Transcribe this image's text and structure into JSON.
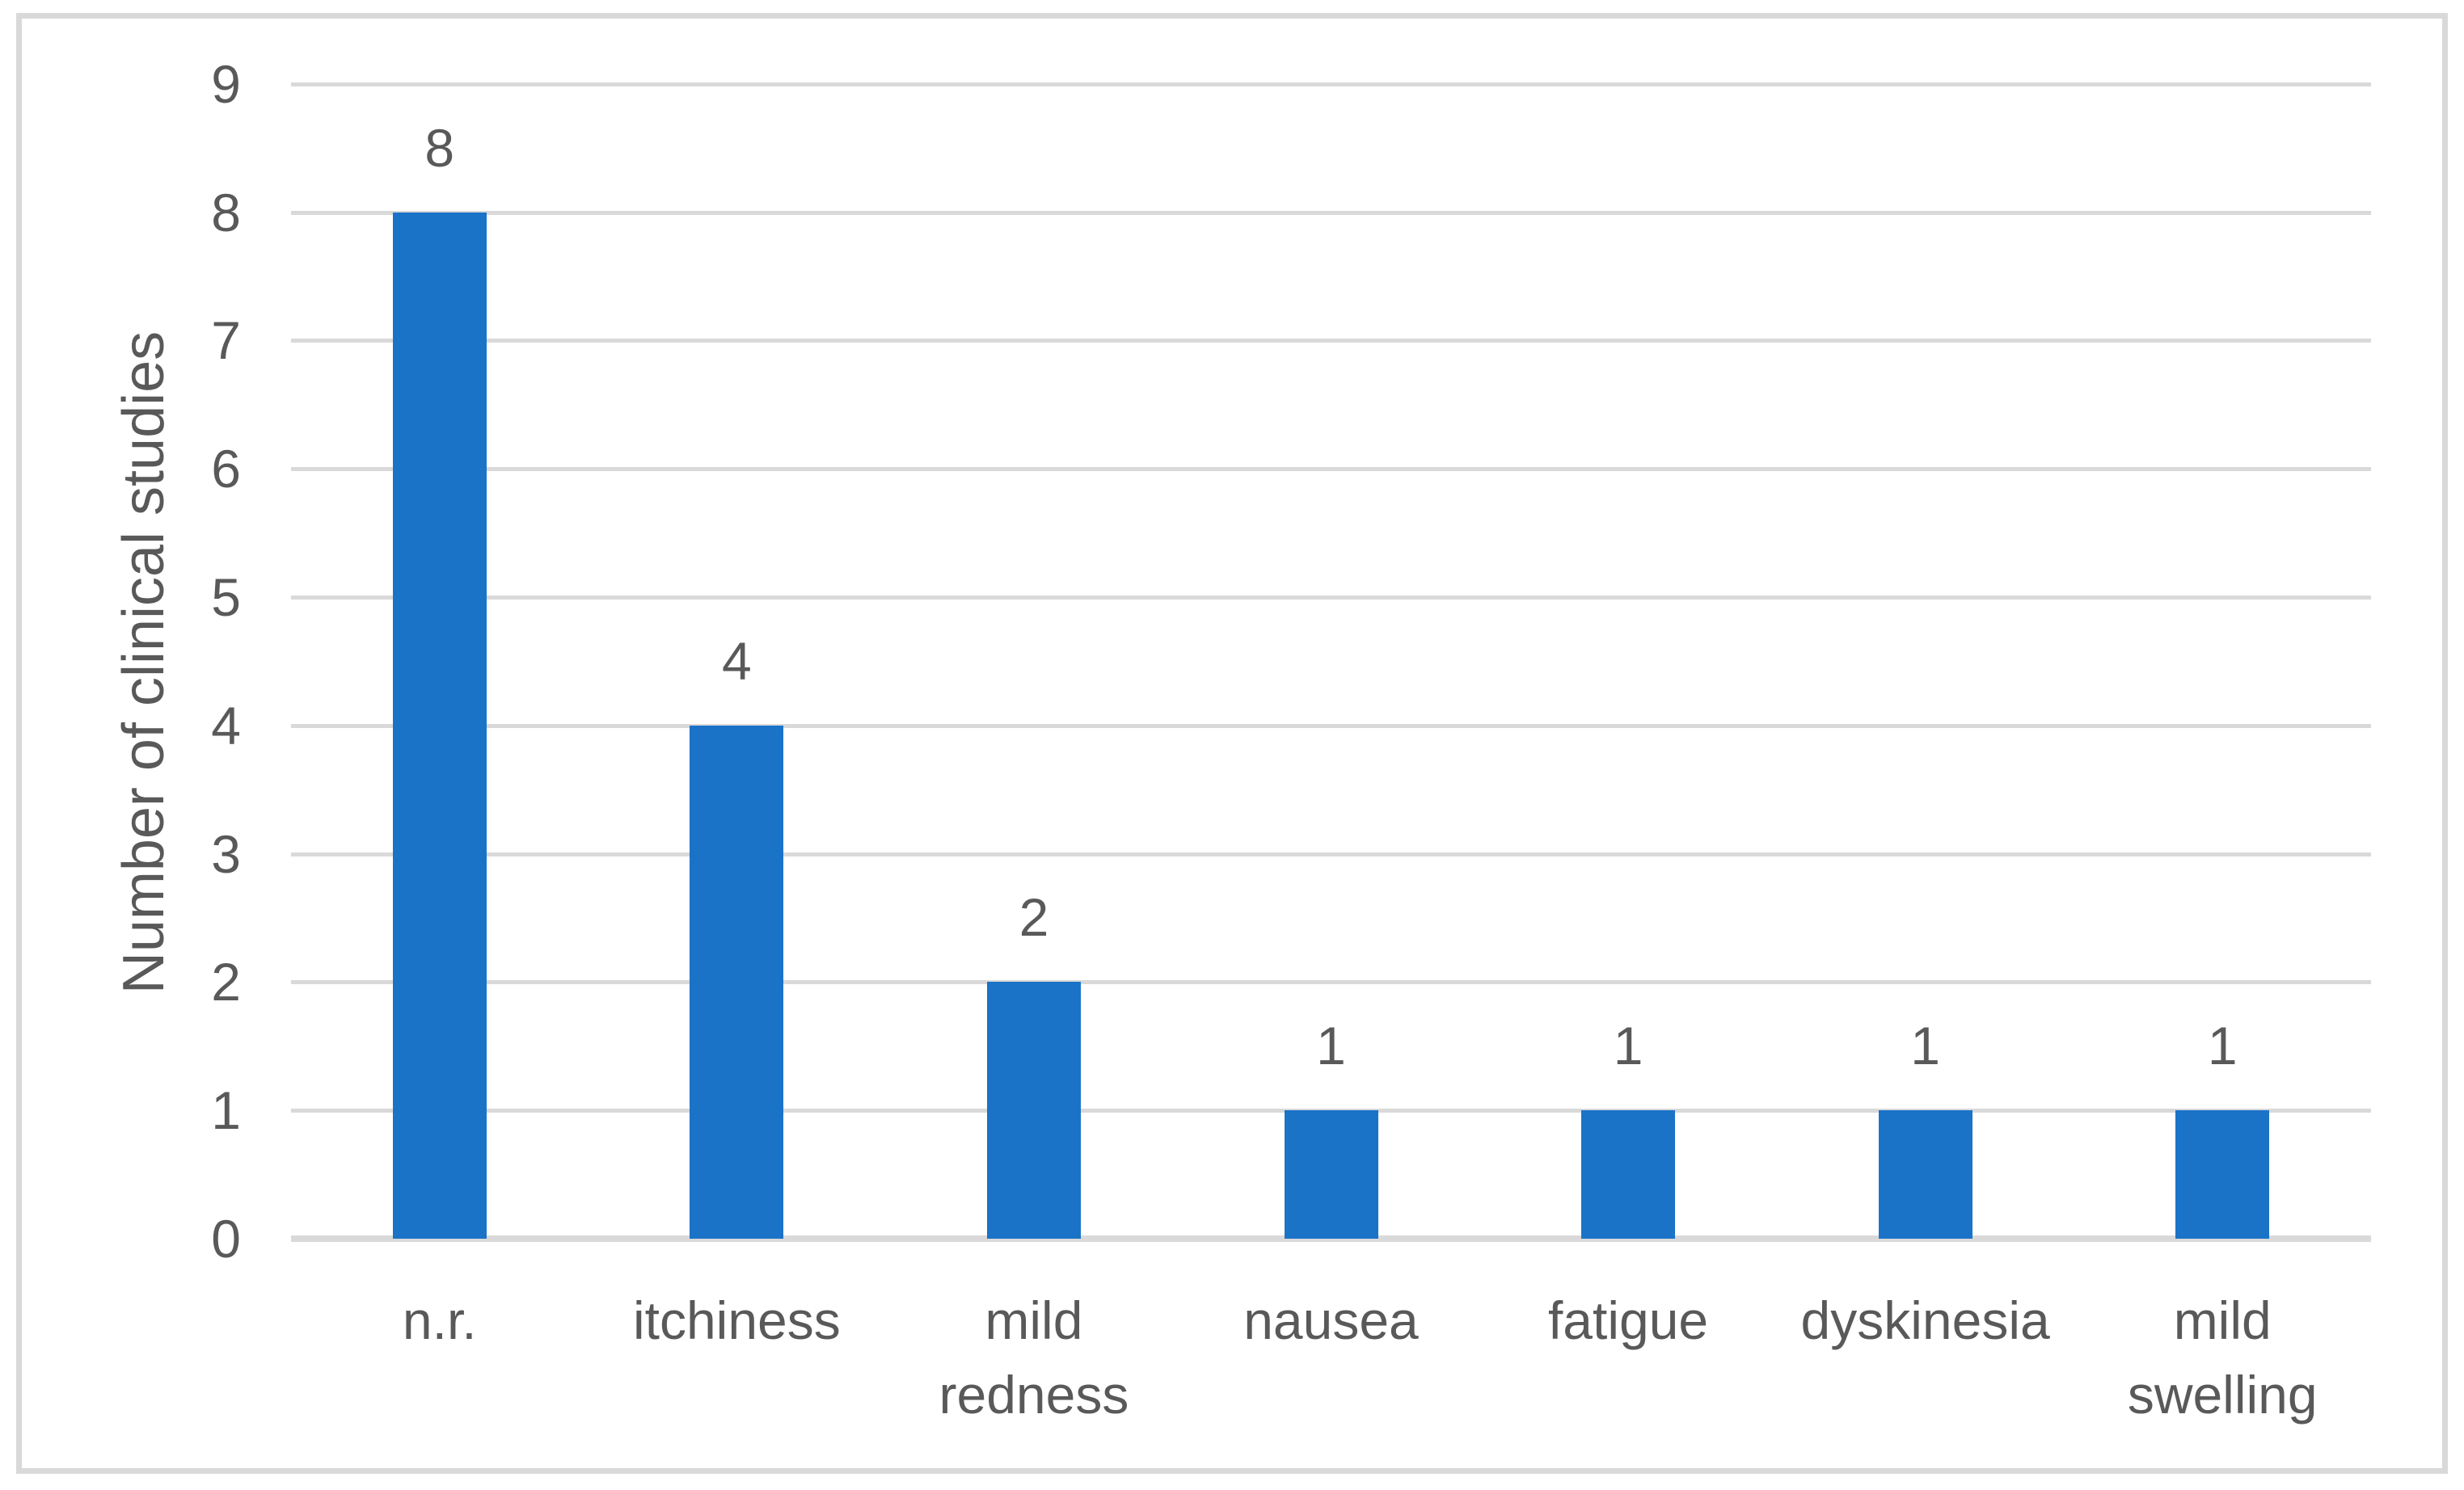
{
  "chart_data": {
    "type": "bar",
    "title": "",
    "xlabel": "",
    "ylabel": "Number of clinical studies",
    "categories": [
      "n.r.",
      "itchiness",
      "mild\nredness",
      "nausea",
      "fatigue",
      "dyskinesia",
      "mild\nswelling"
    ],
    "values": [
      8,
      4,
      2,
      1,
      1,
      1,
      1
    ],
    "data_labels": [
      "8",
      "4",
      "2",
      "1",
      "1",
      "1",
      "1"
    ],
    "y_ticks": [
      0,
      1,
      2,
      3,
      4,
      5,
      6,
      7,
      8,
      9
    ],
    "ylim": [
      0,
      9
    ],
    "grid": "horizontal gridlines at each integer",
    "legend_position": "none",
    "colors": {
      "bar": "#1b73c8",
      "gridline": "#d9d9d9",
      "axis_line": "#d9d9d9",
      "frame_border": "#d9d9d9",
      "text": "#595959",
      "background": "#ffffff"
    }
  }
}
